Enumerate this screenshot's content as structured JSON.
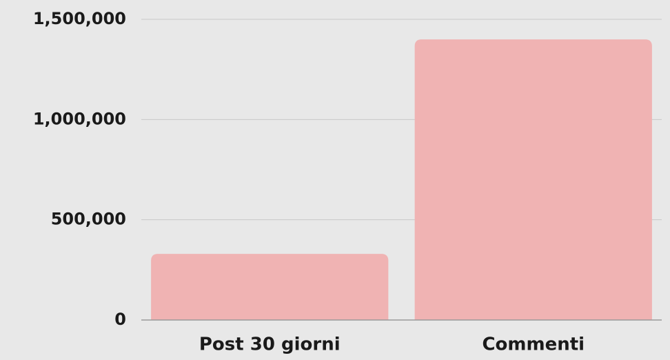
{
  "chart_data": {
    "type": "bar",
    "categories": [
      "Post 30 giorni",
      "Commenti"
    ],
    "values": [
      330000,
      1400000
    ],
    "color": "#f0b3b3",
    "ylim": [
      0,
      1500000
    ],
    "yticks": [
      0,
      {
        "value": 500000,
        "label": "500,000"
      },
      {
        "value": 1000000,
        "label": "1,000,000"
      },
      {
        "value": 1500000,
        "label": "1,500,000"
      }
    ],
    "grid": true
  }
}
